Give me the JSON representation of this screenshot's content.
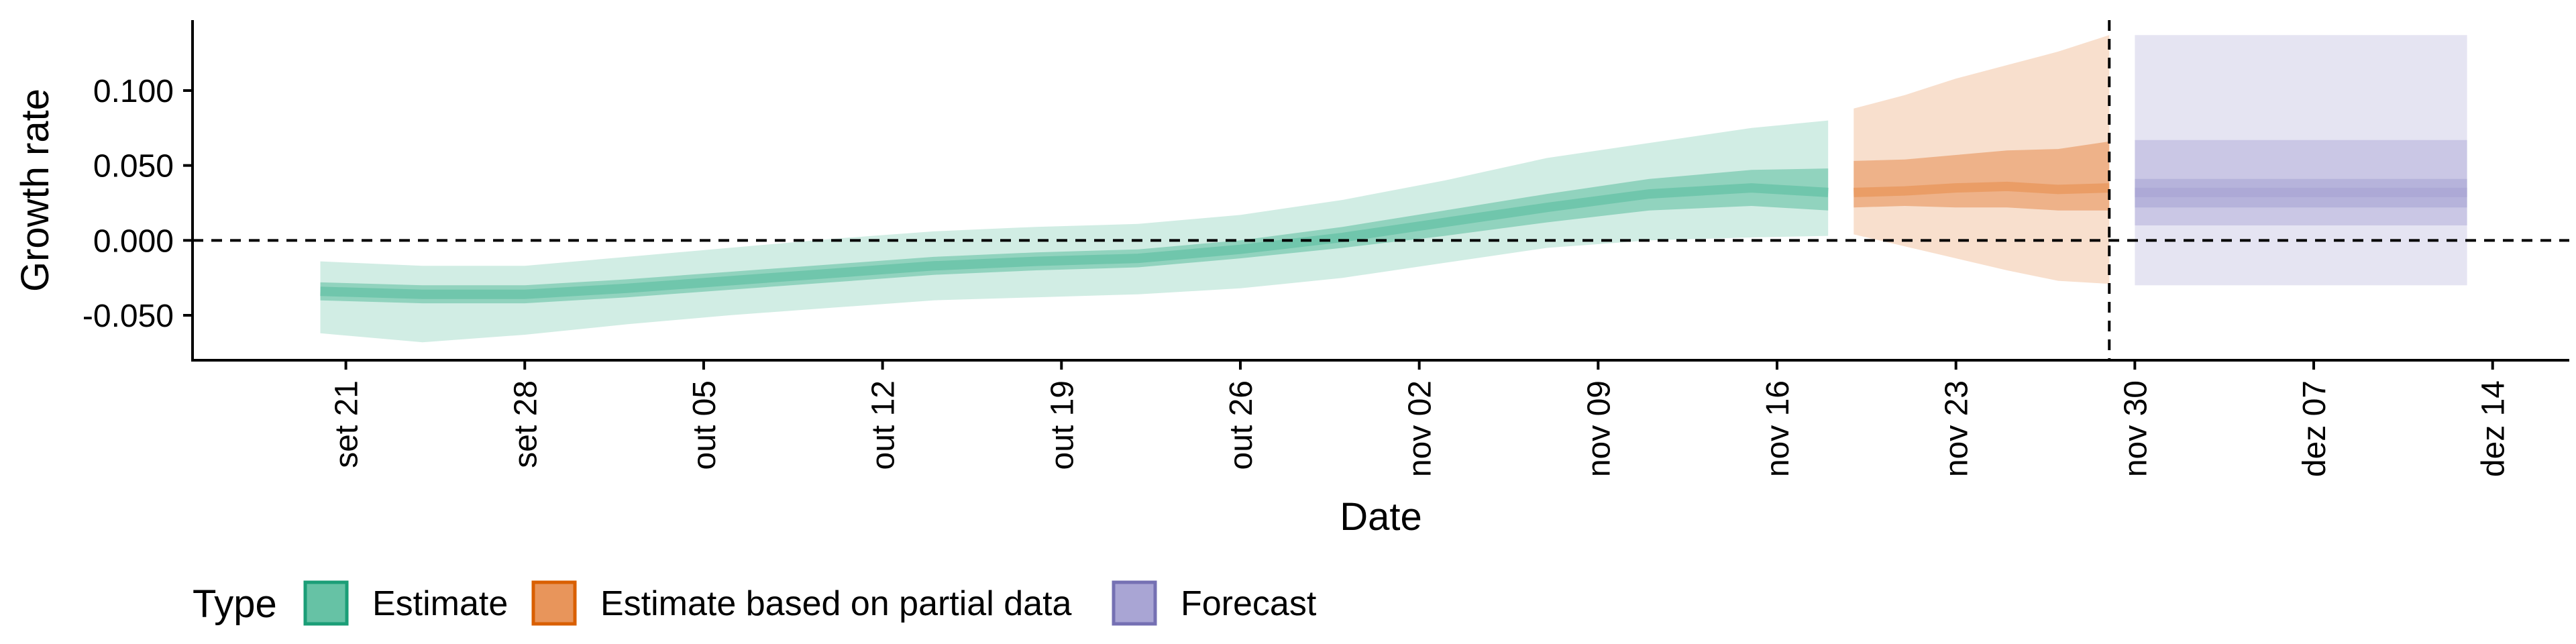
{
  "chart_data": {
    "type": "area",
    "ylabel": "Growth rate",
    "xlabel": "Date",
    "x_ticks": [
      "set 21",
      "set 28",
      "out 05",
      "out 12",
      "out 19",
      "out 26",
      "nov 02",
      "nov 09",
      "nov 16",
      "nov 23",
      "nov 30",
      "dez 07",
      "dez 14"
    ],
    "y_ticks": [
      "-0.050",
      "0.000",
      "0.050",
      "0.100"
    ],
    "y_tick_values": [
      -0.05,
      0.0,
      0.05,
      0.1
    ],
    "ylim": [
      -0.08,
      0.147
    ],
    "xlim": [
      "2020-09-15",
      "2020-12-17"
    ],
    "reference_lines": {
      "horizontal_y": 0.0,
      "vertical_date": "2020-11-29"
    },
    "grid": false,
    "legend": {
      "title": "Type",
      "position": "bottom-left",
      "items": [
        {
          "label": "Estimate",
          "color": "#66c2a5",
          "border": "#1b9e77"
        },
        {
          "label": "Estimate based on partial data",
          "color": "#e8955b",
          "border": "#d95f02"
        },
        {
          "label": "Forecast",
          "color": "#a9a5d4",
          "border": "#7570b3"
        }
      ]
    },
    "series": [
      {
        "name": "Estimate",
        "color": "#66c2a5",
        "dates": [
          "2020-09-20",
          "2020-09-24",
          "2020-09-28",
          "2020-10-02",
          "2020-10-06",
          "2020-10-10",
          "2020-10-14",
          "2020-10-18",
          "2020-10-22",
          "2020-10-26",
          "2020-10-30",
          "2020-11-03",
          "2020-11-07",
          "2020-11-11",
          "2020-11-15",
          "2020-11-18"
        ],
        "median": [
          -0.034,
          -0.036,
          -0.036,
          -0.032,
          -0.027,
          -0.022,
          -0.017,
          -0.014,
          -0.012,
          -0.006,
          0.002,
          0.012,
          0.022,
          0.031,
          0.035,
          0.032
        ],
        "inner_lower": [
          -0.04,
          -0.042,
          -0.042,
          -0.038,
          -0.033,
          -0.028,
          -0.023,
          -0.02,
          -0.018,
          -0.012,
          -0.005,
          0.003,
          0.012,
          0.02,
          0.023,
          0.02
        ],
        "inner_upper": [
          -0.028,
          -0.03,
          -0.03,
          -0.026,
          -0.021,
          -0.016,
          -0.011,
          -0.008,
          -0.006,
          0.0,
          0.009,
          0.02,
          0.031,
          0.041,
          0.047,
          0.048
        ],
        "outer_lower": [
          -0.062,
          -0.068,
          -0.063,
          -0.056,
          -0.05,
          -0.045,
          -0.04,
          -0.038,
          -0.036,
          -0.032,
          -0.025,
          -0.015,
          -0.005,
          0.0,
          0.002,
          0.003
        ],
        "outer_upper": [
          -0.014,
          -0.017,
          -0.017,
          -0.011,
          -0.005,
          0.001,
          0.006,
          0.009,
          0.011,
          0.017,
          0.027,
          0.04,
          0.055,
          0.065,
          0.075,
          0.08
        ]
      },
      {
        "name": "Estimate based on partial data",
        "color": "#e8955b",
        "dates": [
          "2020-11-19",
          "2020-11-21",
          "2020-11-23",
          "2020-11-25",
          "2020-11-27",
          "2020-11-29"
        ],
        "median": [
          0.032,
          0.033,
          0.035,
          0.036,
          0.034,
          0.035
        ],
        "inner_lower": [
          0.022,
          0.023,
          0.022,
          0.022,
          0.02,
          0.02
        ],
        "inner_upper": [
          0.053,
          0.054,
          0.057,
          0.06,
          0.061,
          0.066
        ],
        "outer_lower": [
          0.004,
          -0.004,
          -0.012,
          -0.02,
          -0.027,
          -0.029
        ],
        "outer_upper": [
          0.088,
          0.097,
          0.108,
          0.117,
          0.126,
          0.137
        ]
      },
      {
        "name": "Forecast",
        "color": "#a9a5d4",
        "dates": [
          "2020-11-30",
          "2020-12-13"
        ],
        "median": [
          0.032,
          0.032
        ],
        "inner_lower": [
          0.022,
          0.022
        ],
        "inner_upper": [
          0.041,
          0.041
        ],
        "mid_lower": [
          0.01,
          0.01
        ],
        "mid_upper": [
          0.067,
          0.067
        ],
        "outer_lower": [
          -0.03,
          -0.03
        ],
        "outer_upper": [
          0.137,
          0.137
        ]
      }
    ]
  }
}
